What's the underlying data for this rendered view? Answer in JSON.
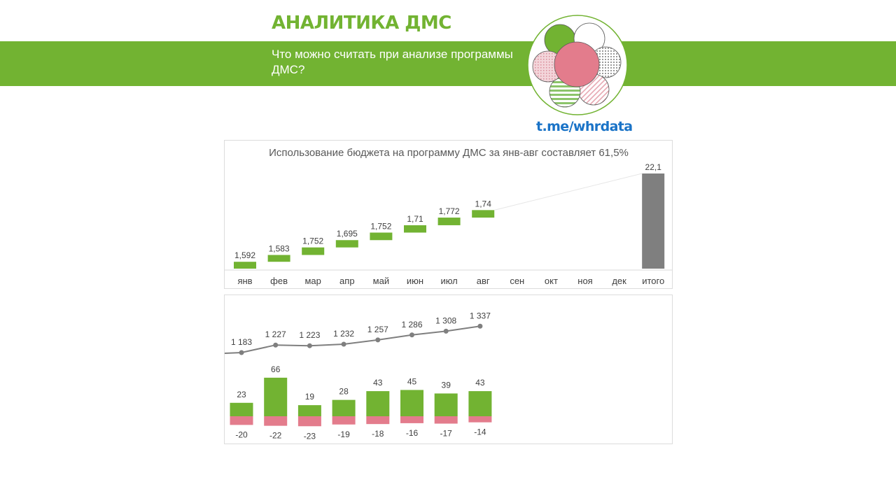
{
  "header": {
    "brand_title": "АНАЛИТИКА ДМС",
    "subtitle": "Что можно считать при анализе программы ДМС?",
    "link": "t.me/whrdata"
  },
  "colors": {
    "brand_green": "#72b332",
    "pink": "#e37c8c",
    "total_gray": "#7f7f7f",
    "link_blue": "#1a73c7"
  },
  "chart_data": [
    {
      "type": "bar",
      "subtype": "waterfall",
      "title": "Использование бюджета на программу ДМС за янв-авг составляет 61,5%",
      "categories": [
        "янв",
        "фев",
        "мар",
        "апр",
        "май",
        "июн",
        "июл",
        "авг",
        "сен",
        "окт",
        "ноя",
        "дек",
        "итого"
      ],
      "values": [
        1.592,
        1.583,
        1.752,
        1.695,
        1.752,
        1.71,
        1.772,
        1.74,
        null,
        null,
        null,
        null,
        22.1
      ],
      "value_labels": [
        "1,592",
        "1,583",
        "1,752",
        "1,695",
        "1,752",
        "1,71",
        "1,772",
        "1,74",
        "",
        "",
        "",
        "",
        "22,1"
      ],
      "total_index": 12,
      "ylim": [
        0,
        22.1
      ],
      "legend": "none",
      "grid": false
    },
    {
      "type": "bar",
      "subtype": "combo line + diverging bars",
      "title": "",
      "categories": [
        "янв",
        "фев",
        "мар",
        "апр",
        "май",
        "июн",
        "июл",
        "авг"
      ],
      "line": {
        "values": [
          1183,
          1227,
          1223,
          1232,
          1257,
          1286,
          1308,
          1337
        ],
        "labels": [
          "1 183",
          "1 227",
          "1 223",
          "1 232",
          "1 257",
          "1 286",
          "1 308",
          "1 337"
        ]
      },
      "series": [
        {
          "values": [
            23,
            66,
            19,
            28,
            43,
            45,
            39,
            43
          ],
          "color": "#72b332"
        },
        {
          "values": [
            -20,
            -22,
            -23,
            -19,
            -18,
            -16,
            -17,
            -14
          ],
          "color": "#e37c8c"
        }
      ],
      "legend": "none",
      "grid": false
    }
  ]
}
